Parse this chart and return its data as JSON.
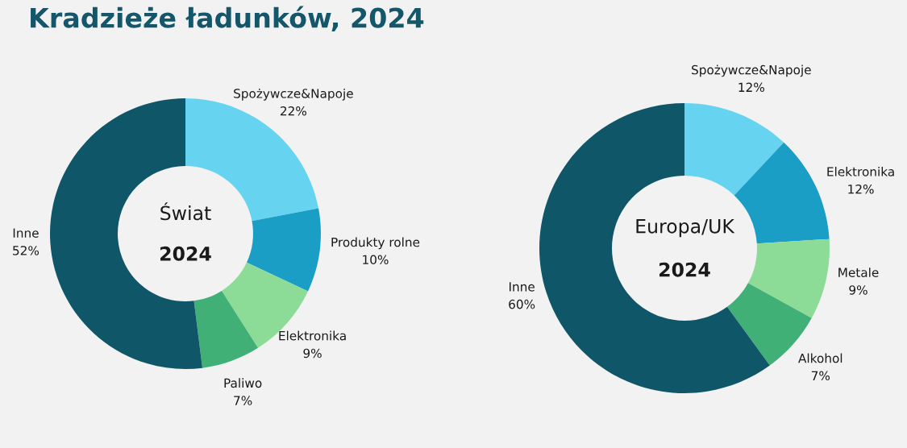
{
  "chart_data": [
    {
      "type": "donut",
      "title": "Kradzieże ładunków, 2024",
      "annotations": [
        "Świat",
        "2024"
      ],
      "categories": [
        "Spożywcze&Napoje",
        "Produkty rolne",
        "Elektronika",
        "Paliwo",
        "Inne"
      ],
      "values": [
        22,
        10,
        9,
        7,
        52
      ],
      "value_labels": [
        "22%",
        "10%",
        "9%",
        "7%",
        "52%"
      ],
      "colors": [
        "#66d4f1",
        "#1a9ec6",
        "#8cdb97",
        "#40b077",
        "#0f5669"
      ]
    },
    {
      "type": "donut",
      "annotations": [
        "Europa/UK",
        "2024"
      ],
      "categories": [
        "Spożywcze&Napoje",
        "Elektronika",
        "Metale",
        "Alkohol",
        "Inne"
      ],
      "values": [
        12,
        12,
        9,
        7,
        60
      ],
      "value_labels": [
        "12%",
        "12%",
        "9%",
        "7%",
        "60%"
      ],
      "colors": [
        "#66d4f1",
        "#1a9ec6",
        "#8cdb97",
        "#40b077",
        "#0f5669"
      ]
    }
  ]
}
